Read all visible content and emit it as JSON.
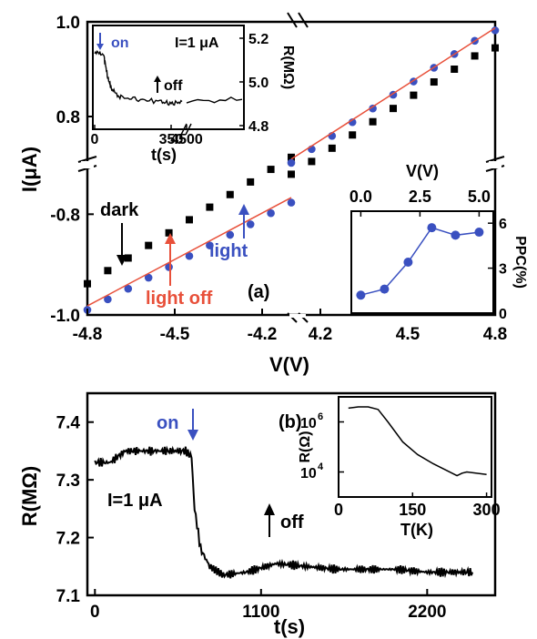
{
  "chart_data": [
    {
      "id": "panel_a",
      "type": "scatter",
      "panel_label": "(a)",
      "xlabel": "V(V)",
      "ylabel": "I(μA)",
      "x_ticks_left": [
        "-4.8",
        "-4.5",
        "-4.2"
      ],
      "x_ticks_right": [
        "4.2",
        "4.5",
        "4.8"
      ],
      "y_ticks_top": [
        "0.8",
        "1.0"
      ],
      "y_ticks_bottom": [
        "-0.8",
        "-1.0"
      ],
      "xlim_left": [
        -4.8,
        -4.1
      ],
      "xlim_right": [
        4.1,
        4.8
      ],
      "ylim_top": [
        0.7,
        1.0
      ],
      "ylim_bottom": [
        -1.0,
        -0.7
      ],
      "annotations": {
        "dark": "dark",
        "light": "light",
        "light_off": "light off"
      },
      "colors": {
        "dark": "#000000",
        "light": "#3a50c0",
        "light_off": "#e8503a"
      },
      "series": [
        {
          "name": "dark",
          "marker": "square",
          "left": {
            "x": [
              -4.8,
              -4.73,
              -4.66,
              -4.59,
              -4.52,
              -4.45,
              -4.38,
              -4.31,
              -4.24,
              -4.17,
              -4.1
            ],
            "y": [
              -0.938,
              -0.912,
              -0.887,
              -0.862,
              -0.837,
              -0.811,
              -0.786,
              -0.761,
              -0.736,
              -0.711,
              -0.687
            ]
          },
          "right": {
            "x": [
              4.1,
              4.17,
              4.24,
              4.31,
              4.38,
              4.45,
              4.52,
              4.59,
              4.66,
              4.73,
              4.8
            ],
            "y": [
              0.678,
              0.705,
              0.733,
              0.761,
              0.789,
              0.817,
              0.845,
              0.873,
              0.9,
              0.928,
              0.945
            ]
          }
        },
        {
          "name": "light",
          "marker": "circle",
          "left": {
            "x": [
              -4.8,
              -4.73,
              -4.66,
              -4.59,
              -4.52,
              -4.45,
              -4.38,
              -4.31,
              -4.24,
              -4.17,
              -4.1
            ],
            "y": [
              -0.99,
              -0.969,
              -0.948,
              -0.926,
              -0.905,
              -0.883,
              -0.862,
              -0.841,
              -0.82,
              -0.798,
              -0.777
            ]
          },
          "right": {
            "x": [
              4.1,
              4.17,
              4.24,
              4.31,
              4.38,
              4.45,
              4.52,
              4.59,
              4.66,
              4.73,
              4.8
            ],
            "y": [
              0.702,
              0.731,
              0.759,
              0.788,
              0.817,
              0.846,
              0.874,
              0.903,
              0.932,
              0.96,
              0.982
            ]
          }
        },
        {
          "name": "light off",
          "marker": "line",
          "left": {
            "x": [
              -4.8,
              -4.1
            ],
            "y": [
              -0.982,
              -0.767
            ]
          },
          "right": {
            "x": [
              4.1,
              4.8
            ],
            "y": [
              0.71,
              0.987
            ]
          }
        }
      ]
    },
    {
      "id": "panel_a_inset_top",
      "type": "line",
      "ylabel": "R(MΩ)",
      "xlabel": "t(s)",
      "x_ticks": [
        "0",
        "350",
        "4500"
      ],
      "y_ticks": [
        "4.8",
        "5.0",
        "5.2"
      ],
      "ylim": [
        4.8,
        5.25
      ],
      "annotations": {
        "on": "on",
        "off": "off",
        "current": "I=1 μA"
      },
      "series": [
        {
          "name": "",
          "x": [
            0,
            40,
            60,
            80,
            120,
            200,
            300,
            350,
            400,
            4500,
            5000
          ],
          "y": [
            5.13,
            5.13,
            5.02,
            4.96,
            4.93,
            4.92,
            4.91,
            4.9,
            4.91,
            4.91,
            4.92
          ]
        }
      ]
    },
    {
      "id": "panel_a_inset_ppc",
      "type": "line",
      "xlabel": "V(V)",
      "ylabel": "PPC(%)",
      "x_ticks": [
        "0.0",
        "2.5",
        "5.0"
      ],
      "y_ticks": [
        "0",
        "3",
        "6"
      ],
      "xlim": [
        -0.4,
        5.6
      ],
      "ylim": [
        0,
        6.8
      ],
      "series": [
        {
          "name": "",
          "x": [
            0,
            1,
            2,
            3,
            4,
            5
          ],
          "y": [
            1.2,
            1.6,
            3.4,
            5.7,
            5.2,
            5.4
          ]
        }
      ]
    },
    {
      "id": "panel_b",
      "type": "line",
      "panel_label": "(b)",
      "xlabel": "t(s)",
      "ylabel": "R(MΩ)",
      "x_ticks": [
        "0",
        "1100",
        "2200"
      ],
      "y_ticks": [
        "7.1",
        "7.2",
        "7.3",
        "7.4"
      ],
      "xlim": [
        -50,
        2650
      ],
      "ylim": [
        7.1,
        7.45
      ],
      "annotations": {
        "on": "on",
        "off": "off",
        "current": "I=1 μA"
      },
      "series": [
        {
          "name": "",
          "x": [
            0,
            100,
            200,
            300,
            400,
            500,
            600,
            640,
            660,
            700,
            760,
            850,
            1000,
            1200,
            1400,
            1600,
            1800,
            2000,
            2200,
            2400,
            2500
          ],
          "y": [
            7.33,
            7.33,
            7.35,
            7.35,
            7.35,
            7.35,
            7.35,
            7.34,
            7.25,
            7.18,
            7.15,
            7.135,
            7.14,
            7.155,
            7.15,
            7.145,
            7.145,
            7.145,
            7.14,
            7.14,
            7.14
          ]
        }
      ]
    },
    {
      "id": "panel_b_inset",
      "type": "line",
      "xlabel": "T(K)",
      "ylabel": "R(Ω)",
      "x_ticks": [
        "0",
        "150",
        "300"
      ],
      "y_ticks_log": [
        "10",
        "10"
      ],
      "y_tick_exponents": [
        "4",
        "6"
      ],
      "xlim": [
        0,
        310
      ],
      "ylim_log10": [
        3,
        7
      ],
      "series": [
        {
          "name": "",
          "x": [
            20,
            40,
            60,
            80,
            100,
            130,
            160,
            190,
            220,
            240,
            250,
            260,
            280,
            300
          ],
          "y_log10": [
            6.55,
            6.6,
            6.6,
            6.5,
            6.0,
            5.2,
            4.7,
            4.35,
            4.05,
            3.85,
            3.95,
            4.0,
            3.95,
            3.9
          ]
        }
      ]
    }
  ]
}
